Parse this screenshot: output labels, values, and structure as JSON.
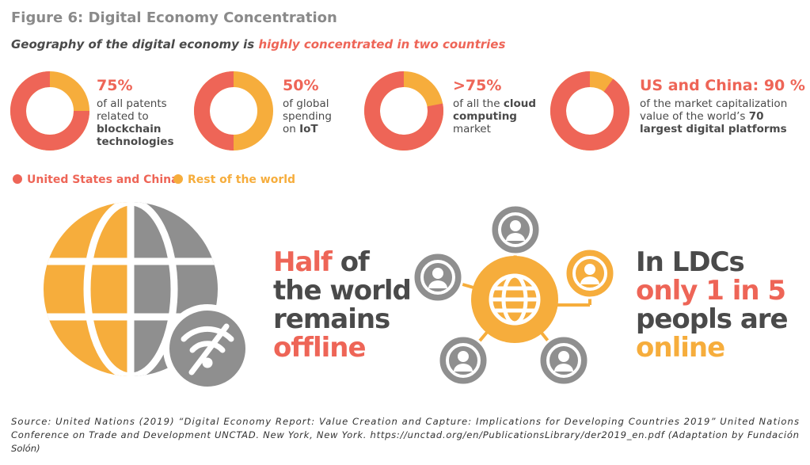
{
  "header": {
    "title": "Figure 6: Digital Economy Concentration",
    "subtitle": [
      {
        "text": "Geography of the digital economy is ",
        "color": "#4a4a4a"
      },
      {
        "text": "highly concentrated in two countries",
        "color": "#ee6557"
      }
    ]
  },
  "colors": {
    "main": "#ee6557",
    "rest": "#f6ad3c"
  },
  "donuts": [
    {
      "headline": "75%",
      "share": 75,
      "lines": [
        [
          {
            "text": "of all patents",
            "bold": false
          }
        ],
        [
          {
            "text": "related to",
            "bold": false
          }
        ],
        [
          {
            "text": "blockchain",
            "bold": true
          }
        ],
        [
          {
            "text": "technologies",
            "bold": true
          }
        ]
      ]
    },
    {
      "headline": "50%",
      "share": 50,
      "lines": [
        [
          {
            "text": "of global",
            "bold": false
          }
        ],
        [
          {
            "text": "spending",
            "bold": false
          }
        ],
        [
          {
            "text": "on ",
            "bold": false
          },
          {
            "text": "IoT",
            "bold": true
          }
        ]
      ]
    },
    {
      "headline": ">75%",
      "share": 78,
      "lines": [
        [
          {
            "text": "of all the ",
            "bold": false
          },
          {
            "text": "cloud",
            "bold": true
          }
        ],
        [
          {
            "text": "computing",
            "bold": true
          }
        ],
        [
          {
            "text": "market",
            "bold": false
          }
        ]
      ]
    },
    {
      "headline": "US and China: 90 %",
      "share": 90,
      "lines": [
        [
          {
            "text": "of the market capitalization",
            "bold": false
          }
        ],
        [
          {
            "text": "value of the world’s ",
            "bold": false
          },
          {
            "text": "70",
            "bold": true
          }
        ],
        [
          {
            "text": "largest digital platforms",
            "bold": true
          }
        ]
      ]
    }
  ],
  "legend": [
    "United States and China",
    "Rest of the world"
  ],
  "offline": [
    [
      {
        "text": "Half",
        "color": "#ee6557"
      },
      {
        "text": " of",
        "color": "#4a4a4a"
      }
    ],
    [
      {
        "text": "the world",
        "color": "#4a4a4a"
      }
    ],
    [
      {
        "text": "remains",
        "color": "#4a4a4a"
      }
    ],
    [
      {
        "text": "offline",
        "color": "#ee6557"
      }
    ]
  ],
  "ldc": [
    [
      {
        "text": "In LDCs",
        "color": "#4a4a4a"
      }
    ],
    [
      {
        "text": "only 1 in 5",
        "color": "#ee6557"
      }
    ],
    [
      {
        "text": "peopls are",
        "color": "#4a4a4a"
      }
    ],
    [
      {
        "text": "online",
        "color": "#f6ad3c"
      }
    ]
  ],
  "source": [
    "Source: United Nations (2019) “Digital Economy Report: Value Creation and Capture: Implications for Developing Countries 2019” United Nations",
    "Conference on Trade and Development UNCTAD. New York, New York. https://unctad.org/en/PublicationsLibrary/der2019_en.pdf (Adaptation by Fundación",
    "Solón)"
  ]
}
